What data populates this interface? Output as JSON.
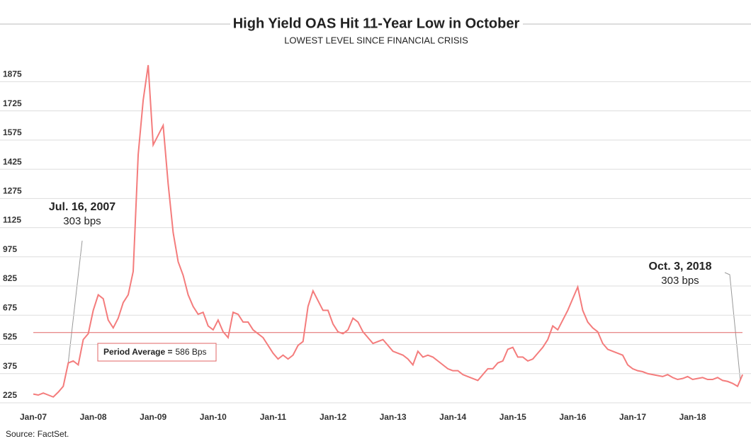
{
  "chart_data": {
    "type": "line",
    "title": "High Yield OAS Hit 11-Year Low in October",
    "subtitle": "LOWEST LEVEL SINCE FINANCIAL CRISIS",
    "source": "Source: FactSet.",
    "categories": [
      "Jan-07",
      null,
      null,
      null,
      null,
      null,
      null,
      null,
      null,
      null,
      null,
      null,
      "Jan-08",
      null,
      null,
      null,
      null,
      null,
      null,
      null,
      null,
      null,
      null,
      null,
      "Jan-09",
      null,
      null,
      null,
      null,
      null,
      null,
      null,
      null,
      null,
      null,
      null,
      "Jan-10",
      null,
      null,
      null,
      null,
      null,
      null,
      null,
      null,
      null,
      null,
      null,
      "Jan-11",
      null,
      null,
      null,
      null,
      null,
      null,
      null,
      null,
      null,
      null,
      null,
      "Jan-12",
      null,
      null,
      null,
      null,
      null,
      null,
      null,
      null,
      null,
      null,
      null,
      "Jan-13",
      null,
      null,
      null,
      null,
      null,
      null,
      null,
      null,
      null,
      null,
      null,
      "Jan-14",
      null,
      null,
      null,
      null,
      null,
      null,
      null,
      null,
      null,
      null,
      null,
      "Jan-15",
      null,
      null,
      null,
      null,
      null,
      null,
      null,
      null,
      null,
      null,
      null,
      "Jan-16",
      null,
      null,
      null,
      null,
      null,
      null,
      null,
      null,
      null,
      null,
      null,
      "Jan-17",
      null,
      null,
      null,
      null,
      null,
      null,
      null,
      null,
      null,
      null,
      null,
      "Jan-18",
      null,
      null,
      null,
      null,
      null,
      null,
      null,
      null,
      null,
      null
    ],
    "series": [
      {
        "name": "High Yield OAS",
        "color": "#f47c7c",
        "values": [
          270,
          265,
          275,
          265,
          255,
          280,
          310,
          430,
          440,
          420,
          550,
          580,
          700,
          780,
          760,
          650,
          610,
          660,
          740,
          780,
          900,
          1500,
          1780,
          1960,
          1550,
          1600,
          1650,
          1350,
          1100,
          950,
          880,
          780,
          720,
          680,
          690,
          620,
          600,
          650,
          590,
          560,
          690,
          680,
          640,
          640,
          600,
          580,
          560,
          520,
          480,
          450,
          470,
          450,
          470,
          520,
          540,
          720,
          800,
          750,
          700,
          700,
          630,
          590,
          580,
          600,
          660,
          640,
          590,
          560,
          530,
          540,
          550,
          520,
          490,
          480,
          470,
          450,
          420,
          490,
          460,
          470,
          460,
          440,
          420,
          400,
          390,
          390,
          370,
          360,
          350,
          340,
          370,
          400,
          400,
          430,
          440,
          500,
          510,
          460,
          460,
          440,
          450,
          480,
          510,
          550,
          620,
          600,
          650,
          700,
          760,
          820,
          700,
          640,
          610,
          590,
          530,
          500,
          490,
          480,
          470,
          420,
          400,
          390,
          385,
          375,
          370,
          365,
          360,
          370,
          355,
          345,
          350,
          360,
          345,
          350,
          355,
          345,
          345,
          355,
          340,
          335,
          325,
          310,
          370
        ]
      }
    ],
    "ylim": [
      225,
      2000
    ],
    "yticks": [
      225,
      375,
      525,
      675,
      825,
      975,
      1125,
      1275,
      1425,
      1575,
      1725,
      1875
    ],
    "grid": true,
    "average": 586,
    "average_label": "Period Average =",
    "average_value_label": "586 Bps",
    "average_color": "#e06666",
    "annotations": [
      {
        "title": "Jul. 16, 2007",
        "text": "303 bps"
      },
      {
        "title": "Oct. 3, 2018",
        "text": "303 bps"
      }
    ]
  }
}
